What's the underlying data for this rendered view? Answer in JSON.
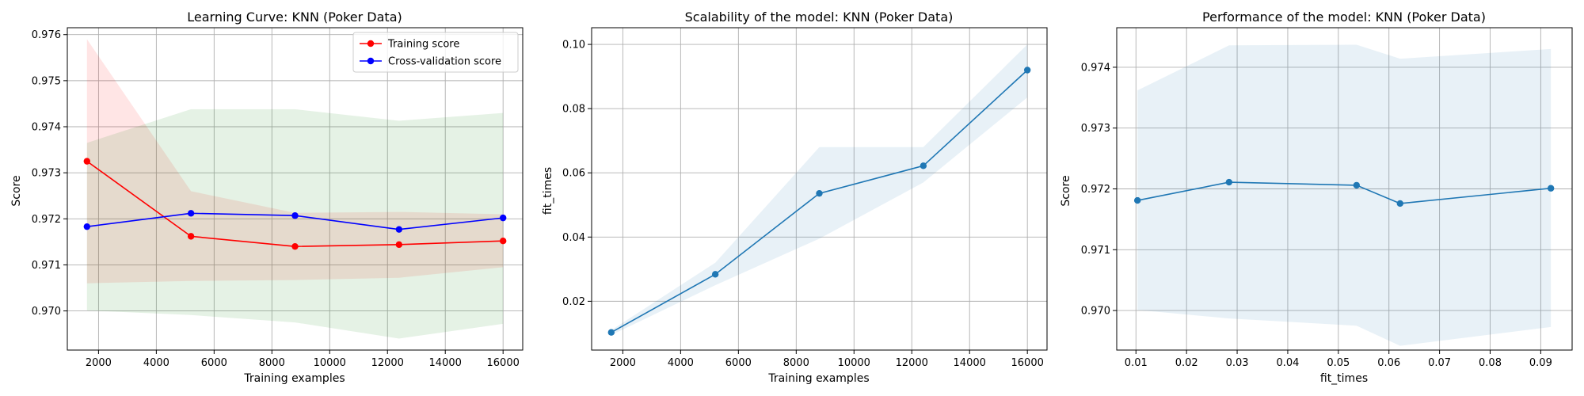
{
  "chart_data": [
    {
      "type": "line",
      "title": "Learning Curve: KNN (Poker Data)",
      "xlabel": "Training examples",
      "ylabel": "Score",
      "xlim": [
        920,
        16680
      ],
      "ylim": [
        0.96915,
        0.97615
      ],
      "xticks": [
        2000,
        4000,
        6000,
        8000,
        10000,
        12000,
        14000,
        16000
      ],
      "xtick_labels": [
        "2000",
        "4000",
        "6000",
        "8000",
        "10000",
        "12000",
        "14000",
        "16000"
      ],
      "yticks": [
        0.97,
        0.971,
        0.972,
        0.973,
        0.974,
        0.975,
        0.976
      ],
      "ytick_labels": [
        "0.970",
        "0.971",
        "0.972",
        "0.973",
        "0.974",
        "0.975",
        "0.976"
      ],
      "grid": true,
      "legend": "top-right",
      "x": [
        1600,
        5200,
        8800,
        12400,
        16000
      ],
      "series": [
        {
          "name": "Training score",
          "color": "#ff0000",
          "values": [
            0.97325,
            0.97162,
            0.9714,
            0.97144,
            0.97152
          ],
          "band_lower": [
            0.9706,
            0.97065,
            0.97067,
            0.97072,
            0.97095
          ],
          "band_upper": [
            0.9759,
            0.9726,
            0.97213,
            0.97215,
            0.9721
          ],
          "band_color": "#ff0000"
        },
        {
          "name": "Cross-validation score",
          "color": "#0000ff",
          "values": [
            0.97183,
            0.97212,
            0.97207,
            0.97177,
            0.97202
          ],
          "band_lower": [
            0.97001,
            0.96991,
            0.96975,
            0.9694,
            0.96972
          ],
          "band_upper": [
            0.97365,
            0.97438,
            0.97438,
            0.97413,
            0.9743
          ],
          "band_color": "#008000"
        }
      ]
    },
    {
      "type": "line",
      "title": "Scalability of the model: KNN (Poker Data)",
      "xlabel": "Training examples",
      "ylabel": "fit_times",
      "xlim": [
        920,
        16680
      ],
      "ylim": [
        0.0048,
        0.1052
      ],
      "xticks": [
        2000,
        4000,
        6000,
        8000,
        10000,
        12000,
        14000,
        16000
      ],
      "xtick_labels": [
        "2000",
        "4000",
        "6000",
        "8000",
        "10000",
        "12000",
        "14000",
        "16000"
      ],
      "yticks": [
        0.02,
        0.04,
        0.06,
        0.08,
        0.1
      ],
      "ytick_labels": [
        "0.02",
        "0.04",
        "0.06",
        "0.08",
        "0.10"
      ],
      "grid": true,
      "x": [
        1600,
        5200,
        8800,
        12400,
        16000
      ],
      "series": [
        {
          "color": "#1f77b4",
          "values": [
            0.0103,
            0.0284,
            0.0536,
            0.0622,
            0.092
          ],
          "band_lower": [
            0.0095,
            0.025,
            0.0395,
            0.057,
            0.0835
          ],
          "band_upper": [
            0.011,
            0.032,
            0.068,
            0.068,
            0.1
          ],
          "band_color": "#1f77b4"
        }
      ]
    },
    {
      "type": "line",
      "title": "Performance of the model: KNN (Poker Data)",
      "xlabel": "fit_times",
      "ylabel": "Score",
      "xlim": [
        0.0062,
        0.0962
      ],
      "ylim": [
        0.96935,
        0.97465
      ],
      "xticks": [
        0.01,
        0.02,
        0.03,
        0.04,
        0.05,
        0.06,
        0.07,
        0.08,
        0.09
      ],
      "xtick_labels": [
        "0.01",
        "0.02",
        "0.03",
        "0.04",
        "0.05",
        "0.06",
        "0.07",
        "0.08",
        "0.09"
      ],
      "yticks": [
        0.97,
        0.971,
        0.972,
        0.973,
        0.974
      ],
      "ytick_labels": [
        "0.970",
        "0.971",
        "0.972",
        "0.973",
        "0.974"
      ],
      "grid": true,
      "x": [
        0.0103,
        0.0284,
        0.0536,
        0.0622,
        0.092
      ],
      "series": [
        {
          "color": "#1f77b4",
          "values": [
            0.97181,
            0.97211,
            0.97206,
            0.97176,
            0.97201
          ],
          "band_lower": [
            0.97001,
            0.96987,
            0.96975,
            0.96942,
            0.96973
          ],
          "band_upper": [
            0.97362,
            0.97436,
            0.97437,
            0.97414,
            0.9743
          ],
          "band_color": "#1f77b4"
        }
      ]
    }
  ]
}
